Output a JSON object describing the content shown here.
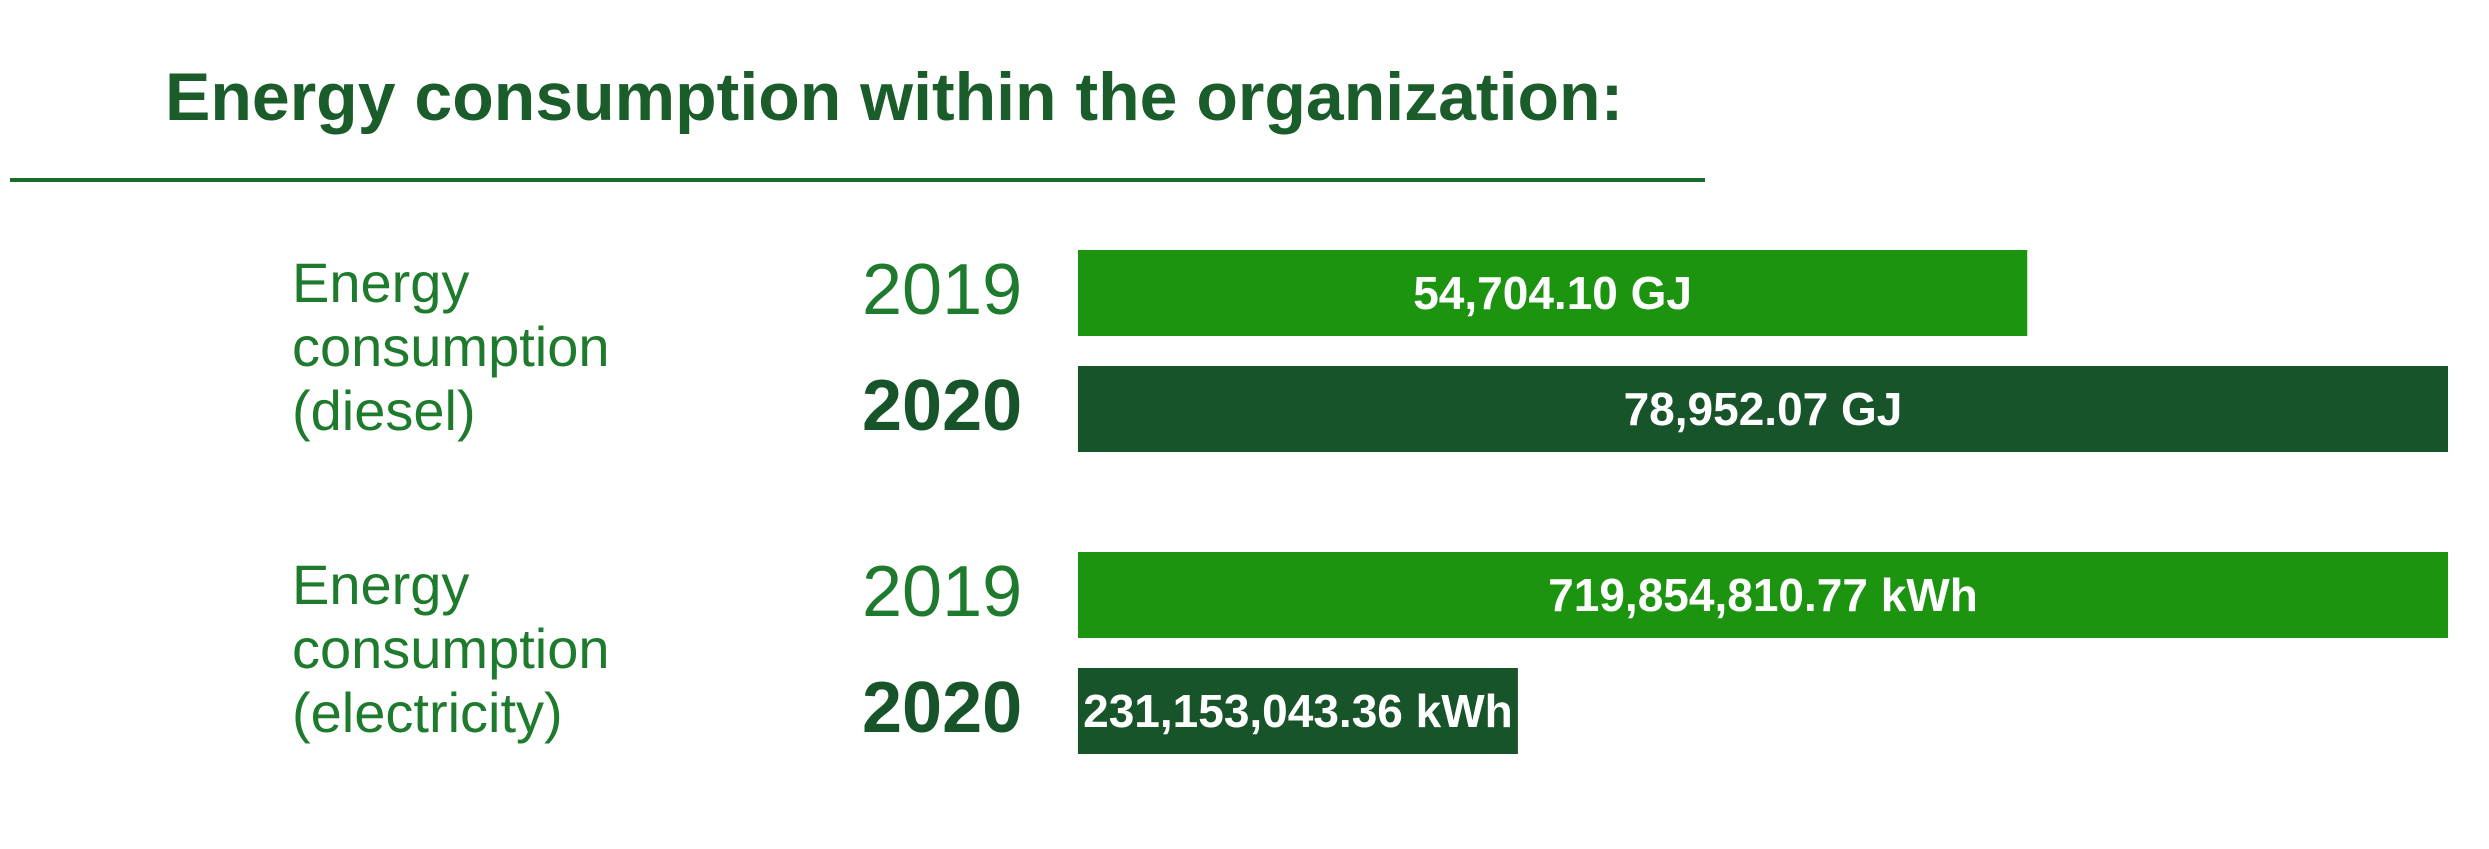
{
  "chart_data": {
    "type": "bar",
    "title": "Energy consumption within the organization:",
    "colors": {
      "title": "#1a5c2a",
      "label": "#1e7a2c",
      "rule": "#1a6b2a",
      "year_2019": "#1c9410",
      "year_2020": "#17542a",
      "bar_text": "#ffffff"
    },
    "groups": [
      {
        "label": [
          "Energy",
          "consumption",
          "(diesel)"
        ],
        "bars": [
          {
            "year": "2019",
            "value": 54704.1,
            "display": "54,704.10 GJ",
            "scale_max": 78952.07
          },
          {
            "year": "2020",
            "value": 78952.07,
            "display": "78,952.07 GJ",
            "scale_max": 78952.07
          }
        ]
      },
      {
        "label": [
          "Energy",
          "consumption",
          "(electricity)"
        ],
        "bars": [
          {
            "year": "2019",
            "value": 719854810.77,
            "display": "719,854,810.77 kWh",
            "scale_max": 719854810.77
          },
          {
            "year": "2020",
            "value": 231153043.36,
            "display": "231,153,043.36 kWh",
            "scale_max": 719854810.77
          }
        ]
      }
    ]
  }
}
